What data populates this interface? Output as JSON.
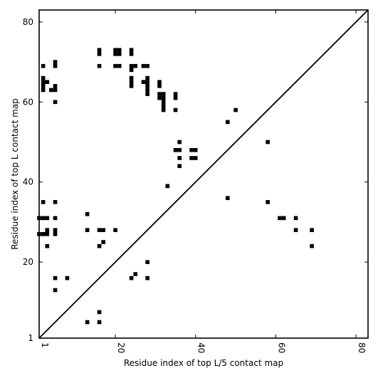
{
  "chart_data": {
    "type": "scatter",
    "title": "",
    "xlabel": "Residue index of top L/5 contact map",
    "ylabel": "Residue index of top L contact map",
    "xlim": [
      1,
      83
    ],
    "ylim": [
      1,
      83
    ],
    "xticks": [
      1,
      20,
      40,
      60,
      80
    ],
    "yticks": [
      1,
      20,
      40,
      60,
      80
    ],
    "xtick_labels": [
      "1",
      "20",
      "40",
      "60",
      "80"
    ],
    "ytick_labels": [
      "1",
      "20",
      "40",
      "60",
      "80"
    ],
    "grid": false,
    "marker_color": "#000000",
    "diagonal": {
      "from": [
        1,
        1
      ],
      "to": [
        83,
        83
      ]
    },
    "upper_points": [
      [
        2,
        69
      ],
      [
        2,
        66
      ],
      [
        2,
        65
      ],
      [
        2,
        64
      ],
      [
        2,
        63
      ],
      [
        3,
        65
      ],
      [
        5,
        70
      ],
      [
        5,
        69
      ],
      [
        4,
        63
      ],
      [
        5,
        63
      ],
      [
        5,
        64
      ],
      [
        5,
        60
      ],
      [
        16,
        73
      ],
      [
        16,
        72
      ],
      [
        16,
        69
      ],
      [
        20,
        73
      ],
      [
        21,
        73
      ],
      [
        20,
        72
      ],
      [
        21,
        72
      ],
      [
        20,
        69
      ],
      [
        21,
        69
      ],
      [
        24,
        73
      ],
      [
        24,
        72
      ],
      [
        24,
        69
      ],
      [
        25,
        69
      ],
      [
        24,
        68
      ],
      [
        24,
        66
      ],
      [
        24,
        65
      ],
      [
        24,
        64
      ],
      [
        27,
        69
      ],
      [
        28,
        69
      ],
      [
        27,
        65
      ],
      [
        28,
        66
      ],
      [
        28,
        65
      ],
      [
        28,
        64
      ],
      [
        28,
        63
      ],
      [
        28,
        62
      ],
      [
        31,
        65
      ],
      [
        31,
        64
      ],
      [
        31,
        62
      ],
      [
        32,
        62
      ],
      [
        31,
        61
      ],
      [
        32,
        61
      ],
      [
        32,
        60
      ],
      [
        32,
        59
      ],
      [
        32,
        58
      ],
      [
        35,
        62
      ],
      [
        35,
        61
      ],
      [
        35,
        58
      ],
      [
        36,
        50
      ],
      [
        35,
        48
      ],
      [
        36,
        48
      ],
      [
        36,
        46
      ],
      [
        36,
        44
      ],
      [
        39,
        48
      ],
      [
        40,
        48
      ],
      [
        39,
        46
      ],
      [
        40,
        46
      ],
      [
        33,
        39
      ],
      [
        48,
        55
      ],
      [
        50,
        58
      ],
      [
        58,
        50
      ]
    ],
    "lower_points": [
      [
        2,
        35
      ],
      [
        1,
        31
      ],
      [
        2,
        31
      ],
      [
        3,
        31
      ],
      [
        1,
        27
      ],
      [
        2,
        27
      ],
      [
        3,
        27
      ],
      [
        3,
        28
      ],
      [
        3,
        24
      ],
      [
        5,
        35
      ],
      [
        5,
        31
      ],
      [
        5,
        28
      ],
      [
        5,
        27
      ],
      [
        13,
        32
      ],
      [
        13,
        28
      ],
      [
        16,
        28
      ],
      [
        17,
        28
      ],
      [
        16,
        24
      ],
      [
        17,
        25
      ],
      [
        20,
        28
      ],
      [
        48,
        36
      ],
      [
        58,
        35
      ],
      [
        61,
        31
      ],
      [
        62,
        31
      ],
      [
        65,
        31
      ],
      [
        65,
        28
      ],
      [
        69,
        28
      ],
      [
        69,
        24
      ],
      [
        28,
        20
      ],
      [
        25,
        17
      ],
      [
        24,
        16
      ],
      [
        28,
        16
      ],
      [
        5,
        16
      ],
      [
        8,
        16
      ],
      [
        5,
        13
      ],
      [
        16,
        7.5
      ],
      [
        13,
        5
      ],
      [
        16,
        5
      ]
    ]
  }
}
